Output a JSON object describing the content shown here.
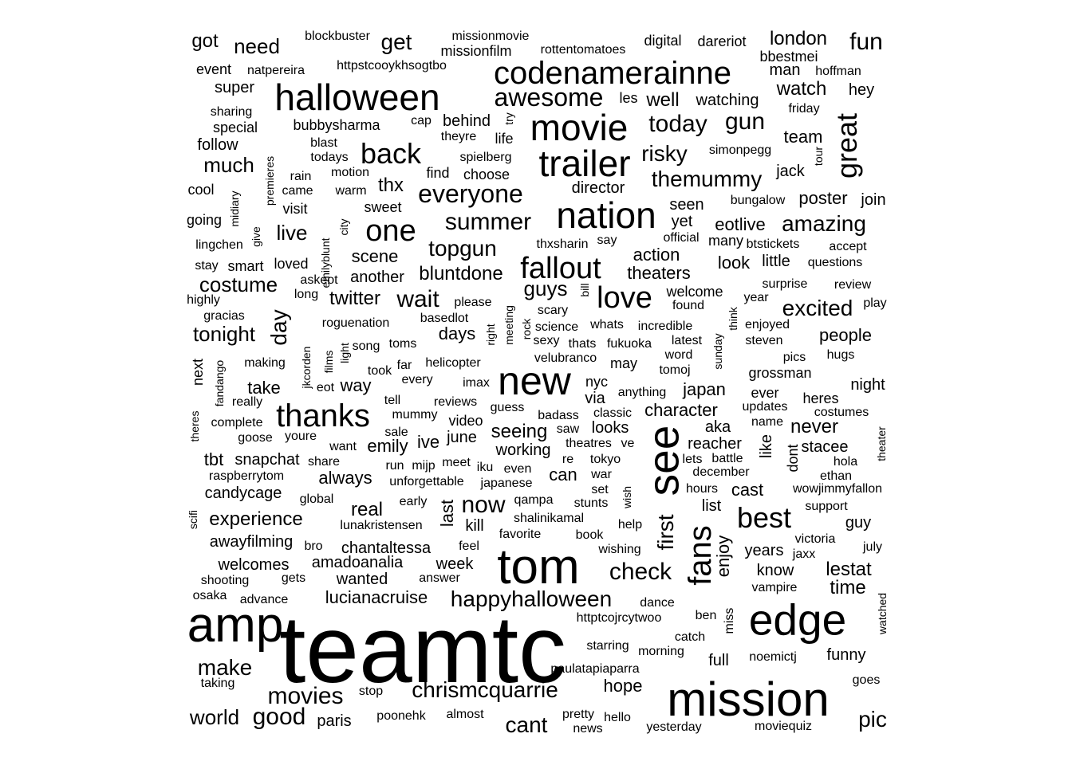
{
  "background": "#ffffff",
  "text_color": "#000000",
  "words": [
    {
      "text": "teamtc",
      "size": 120
    },
    {
      "text": "amp",
      "size": 62
    },
    {
      "text": "tom",
      "size": 62
    },
    {
      "text": "mission",
      "size": 60
    },
    {
      "text": "see",
      "size": 55
    },
    {
      "text": "edge",
      "size": 55
    },
    {
      "text": "new",
      "size": 50
    },
    {
      "text": "halloween",
      "size": 46
    },
    {
      "text": "nation",
      "size": 46
    },
    {
      "text": "trailer",
      "size": 46
    },
    {
      "text": "movie",
      "size": 46
    },
    {
      "text": "codenamerainne",
      "size": 40
    },
    {
      "text": "thanks",
      "size": 40
    },
    {
      "text": "fans",
      "size": 40
    },
    {
      "text": "fallout",
      "size": 38
    },
    {
      "text": "one",
      "size": 38
    },
    {
      "text": "back",
      "size": 36
    },
    {
      "text": "love",
      "size": 38
    },
    {
      "text": "great",
      "size": 36
    },
    {
      "text": "best",
      "size": 36
    },
    {
      "text": "everyone",
      "size": 32
    },
    {
      "text": "summer",
      "size": 30
    },
    {
      "text": "awesome",
      "size": 32
    },
    {
      "text": "today",
      "size": 30
    },
    {
      "text": "check",
      "size": 30
    },
    {
      "text": "now",
      "size": 30
    },
    {
      "text": "wait",
      "size": 30
    },
    {
      "text": "good",
      "size": 30
    },
    {
      "text": "movies",
      "size": 30
    },
    {
      "text": "chrismcquarrie",
      "size": 28
    },
    {
      "text": "happyhalloween",
      "size": 28
    },
    {
      "text": "cant",
      "size": 28
    },
    {
      "text": "make",
      "size": 28
    },
    {
      "text": "topgun",
      "size": 28
    },
    {
      "text": "gun",
      "size": 30
    },
    {
      "text": "themummy",
      "size": 28
    },
    {
      "text": "risky",
      "size": 28
    },
    {
      "text": "amazing",
      "size": 28
    },
    {
      "text": "excited",
      "size": 28
    },
    {
      "text": "first",
      "size": 28
    },
    {
      "text": "day",
      "size": 28
    },
    {
      "text": "fun",
      "size": 30
    },
    {
      "text": "get",
      "size": 28
    },
    {
      "text": "pic",
      "size": 28
    },
    {
      "text": "world",
      "size": 26
    },
    {
      "text": "much",
      "size": 26
    },
    {
      "text": "need",
      "size": 26
    },
    {
      "text": "got",
      "size": 24
    },
    {
      "text": "costume",
      "size": 26
    },
    {
      "text": "tonight",
      "size": 26
    },
    {
      "text": "live",
      "size": 26
    },
    {
      "text": "bluntdone",
      "size": 24
    },
    {
      "text": "guys",
      "size": 26
    },
    {
      "text": "thx",
      "size": 24
    },
    {
      "text": "twitter",
      "size": 24
    },
    {
      "text": "seeing",
      "size": 24
    },
    {
      "text": "never",
      "size": 24
    },
    {
      "text": "time",
      "size": 24
    },
    {
      "text": "lestat",
      "size": 24
    },
    {
      "text": "watch",
      "size": 24
    },
    {
      "text": "well",
      "size": 24
    },
    {
      "text": "london",
      "size": 24
    },
    {
      "text": "poster",
      "size": 22
    },
    {
      "text": "people",
      "size": 22
    },
    {
      "text": "experience",
      "size": 24
    },
    {
      "text": "real",
      "size": 24
    },
    {
      "text": "always",
      "size": 22
    },
    {
      "text": "lucianacruise",
      "size": 22
    },
    {
      "text": "japan",
      "size": 22
    },
    {
      "text": "character",
      "size": 22
    },
    {
      "text": "action",
      "size": 22
    },
    {
      "text": "theaters",
      "size": 22
    },
    {
      "text": "eotlive",
      "size": 22
    },
    {
      "text": "look",
      "size": 22
    },
    {
      "text": "take",
      "size": 22
    },
    {
      "text": "way",
      "size": 22
    },
    {
      "text": "emily",
      "size": 22
    },
    {
      "text": "tbt",
      "size": 22
    },
    {
      "text": "snapchat",
      "size": 20
    },
    {
      "text": "candycage",
      "size": 20
    },
    {
      "text": "scene",
      "size": 22
    },
    {
      "text": "another",
      "size": 20
    },
    {
      "text": "can",
      "size": 22
    },
    {
      "text": "cast",
      "size": 22
    },
    {
      "text": "days",
      "size": 22
    },
    {
      "text": "enjoy",
      "size": 22
    },
    {
      "text": "chantaltessa",
      "size": 20
    },
    {
      "text": "amadoanalia",
      "size": 20
    },
    {
      "text": "welcomes",
      "size": 20
    },
    {
      "text": "awayfilming",
      "size": 20
    },
    {
      "text": "wanted",
      "size": 20
    },
    {
      "text": "week",
      "size": 20
    },
    {
      "text": "working",
      "size": 20
    },
    {
      "text": "hope",
      "size": 22
    },
    {
      "text": "full",
      "size": 20
    },
    {
      "text": "funny",
      "size": 20
    },
    {
      "text": "years",
      "size": 20
    },
    {
      "text": "know",
      "size": 20
    },
    {
      "text": "guy",
      "size": 20
    },
    {
      "text": "list",
      "size": 20
    },
    {
      "text": "last",
      "size": 22
    },
    {
      "text": "kill",
      "size": 20
    },
    {
      "text": "ive",
      "size": 22
    },
    {
      "text": "june",
      "size": 20
    },
    {
      "text": "director",
      "size": 20
    },
    {
      "text": "team",
      "size": 22
    },
    {
      "text": "super",
      "size": 20
    },
    {
      "text": "follow",
      "size": 20
    },
    {
      "text": "bubbysharma",
      "size": 18
    },
    {
      "text": "behind",
      "size": 20
    },
    {
      "text": "watching",
      "size": 20
    },
    {
      "text": "hey",
      "size": 20
    },
    {
      "text": "jack",
      "size": 20
    },
    {
      "text": "join",
      "size": 20
    },
    {
      "text": "seen",
      "size": 20
    },
    {
      "text": "yet",
      "size": 20
    },
    {
      "text": "like",
      "size": 20
    },
    {
      "text": "aka",
      "size": 20
    },
    {
      "text": "reacher",
      "size": 20
    },
    {
      "text": "stacee",
      "size": 20
    },
    {
      "text": "dont",
      "size": 18
    },
    {
      "text": "night",
      "size": 20
    },
    {
      "text": "ever",
      "size": 18
    },
    {
      "text": "via",
      "size": 20
    },
    {
      "text": "looks",
      "size": 20
    },
    {
      "text": "may",
      "size": 18
    },
    {
      "text": "nyc",
      "size": 18
    },
    {
      "text": "next",
      "size": 18
    },
    {
      "text": "paris",
      "size": 20
    },
    {
      "text": "goes",
      "size": 16
    },
    {
      "text": "digital",
      "size": 18
    },
    {
      "text": "dareriot",
      "size": 18
    },
    {
      "text": "bbestmei",
      "size": 18
    },
    {
      "text": "man",
      "size": 20
    },
    {
      "text": "les",
      "size": 18
    },
    {
      "text": "blockbuster",
      "size": 16
    },
    {
      "text": "missionmovie",
      "size": 16
    },
    {
      "text": "missionfilm",
      "size": 18
    },
    {
      "text": "rottentomatoes",
      "size": 16
    },
    {
      "text": "event",
      "size": 18
    },
    {
      "text": "natpereira",
      "size": 16
    },
    {
      "text": "httpstcooykhsogtbo",
      "size": 16
    },
    {
      "text": "hoffman",
      "size": 16
    },
    {
      "text": "sharing",
      "size": 16
    },
    {
      "text": "special",
      "size": 18
    },
    {
      "text": "cap",
      "size": 16
    },
    {
      "text": "try",
      "size": 14
    },
    {
      "text": "life",
      "size": 18
    },
    {
      "text": "theyre",
      "size": 16
    },
    {
      "text": "friday",
      "size": 16
    },
    {
      "text": "blast",
      "size": 16
    },
    {
      "text": "todays",
      "size": 16
    },
    {
      "text": "spielberg",
      "size": 16
    },
    {
      "text": "simonpegg",
      "size": 16
    },
    {
      "text": "tour",
      "size": 14
    },
    {
      "text": "premieres",
      "size": 14
    },
    {
      "text": "rain",
      "size": 16
    },
    {
      "text": "motion",
      "size": 16
    },
    {
      "text": "find",
      "size": 18
    },
    {
      "text": "choose",
      "size": 18
    },
    {
      "text": "cool",
      "size": 18
    },
    {
      "text": "came",
      "size": 16
    },
    {
      "text": "warm",
      "size": 16
    },
    {
      "text": "midiary",
      "size": 14
    },
    {
      "text": "visit",
      "size": 18
    },
    {
      "text": "sweet",
      "size": 18
    },
    {
      "text": "bungalow",
      "size": 16
    },
    {
      "text": "going",
      "size": 18
    },
    {
      "text": "give",
      "size": 14
    },
    {
      "text": "city",
      "size": 14
    },
    {
      "text": "thxsharin",
      "size": 16
    },
    {
      "text": "say",
      "size": 16
    },
    {
      "text": "official",
      "size": 16
    },
    {
      "text": "many",
      "size": 18
    },
    {
      "text": "btstickets",
      "size": 16
    },
    {
      "text": "accept",
      "size": 16
    },
    {
      "text": "lingchen",
      "size": 16
    },
    {
      "text": "emilyblunt",
      "size": 14
    },
    {
      "text": "stay",
      "size": 16
    },
    {
      "text": "smart",
      "size": 18
    },
    {
      "text": "loved",
      "size": 18
    },
    {
      "text": "little",
      "size": 20
    },
    {
      "text": "questions",
      "size": 16
    },
    {
      "text": "askeot",
      "size": 16
    },
    {
      "text": "long",
      "size": 16
    },
    {
      "text": "bill",
      "size": 14
    },
    {
      "text": "welcome",
      "size": 18
    },
    {
      "text": "surprise",
      "size": 16
    },
    {
      "text": "review",
      "size": 16
    },
    {
      "text": "highly",
      "size": 16
    },
    {
      "text": "please",
      "size": 16
    },
    {
      "text": "scary",
      "size": 16
    },
    {
      "text": "found",
      "size": 16
    },
    {
      "text": "year",
      "size": 16
    },
    {
      "text": "play",
      "size": 16
    },
    {
      "text": "gracias",
      "size": 16
    },
    {
      "text": "roguenation",
      "size": 16
    },
    {
      "text": "basedlot",
      "size": 16
    },
    {
      "text": "meeting",
      "size": 14
    },
    {
      "text": "right",
      "size": 14
    },
    {
      "text": "rock",
      "size": 14
    },
    {
      "text": "science",
      "size": 16
    },
    {
      "text": "whats",
      "size": 16
    },
    {
      "text": "incredible",
      "size": 16
    },
    {
      "text": "think",
      "size": 14
    },
    {
      "text": "enjoyed",
      "size": 16
    },
    {
      "text": "song",
      "size": 16
    },
    {
      "text": "toms",
      "size": 16
    },
    {
      "text": "films",
      "size": 14
    },
    {
      "text": "light",
      "size": 14
    },
    {
      "text": "sexy",
      "size": 16
    },
    {
      "text": "thats",
      "size": 16
    },
    {
      "text": "fukuoka",
      "size": 16
    },
    {
      "text": "latest",
      "size": 16
    },
    {
      "text": "sunday",
      "size": 14
    },
    {
      "text": "steven",
      "size": 16
    },
    {
      "text": "hugs",
      "size": 16
    },
    {
      "text": "making",
      "size": 16
    },
    {
      "text": "jkcorden",
      "size": 14
    },
    {
      "text": "helicopter",
      "size": 16
    },
    {
      "text": "velubranco",
      "size": 16
    },
    {
      "text": "word",
      "size": 16
    },
    {
      "text": "pics",
      "size": 16
    },
    {
      "text": "grossman",
      "size": 18
    },
    {
      "text": "fandango",
      "size": 14
    },
    {
      "text": "far",
      "size": 16
    },
    {
      "text": "took",
      "size": 16
    },
    {
      "text": "tomoj",
      "size": 16
    },
    {
      "text": "eot",
      "size": 16
    },
    {
      "text": "every",
      "size": 16
    },
    {
      "text": "imax",
      "size": 16
    },
    {
      "text": "anything",
      "size": 16
    },
    {
      "text": "heres",
      "size": 18
    },
    {
      "text": "really",
      "size": 16
    },
    {
      "text": "tell",
      "size": 16
    },
    {
      "text": "reviews",
      "size": 16
    },
    {
      "text": "updates",
      "size": 16
    },
    {
      "text": "costumes",
      "size": 16
    },
    {
      "text": "theres",
      "size": 14
    },
    {
      "text": "complete",
      "size": 16
    },
    {
      "text": "mummy",
      "size": 16
    },
    {
      "text": "guess",
      "size": 16
    },
    {
      "text": "badass",
      "size": 16
    },
    {
      "text": "classic",
      "size": 16
    },
    {
      "text": "name",
      "size": 16
    },
    {
      "text": "theater",
      "size": 14
    },
    {
      "text": "goose",
      "size": 16
    },
    {
      "text": "youre",
      "size": 16
    },
    {
      "text": "video",
      "size": 18
    },
    {
      "text": "saw",
      "size": 16
    },
    {
      "text": "sale",
      "size": 16
    },
    {
      "text": "theatres",
      "size": 16
    },
    {
      "text": "ve",
      "size": 16
    },
    {
      "text": "want",
      "size": 16
    },
    {
      "text": "re",
      "size": 16
    },
    {
      "text": "tokyo",
      "size": 16
    },
    {
      "text": "lets",
      "size": 16
    },
    {
      "text": "battle",
      "size": 16
    },
    {
      "text": "hola",
      "size": 16
    },
    {
      "text": "share",
      "size": 16
    },
    {
      "text": "run",
      "size": 16
    },
    {
      "text": "mijp",
      "size": 16
    },
    {
      "text": "meet",
      "size": 16
    },
    {
      "text": "iku",
      "size": 16
    },
    {
      "text": "even",
      "size": 16
    },
    {
      "text": "war",
      "size": 16
    },
    {
      "text": "december",
      "size": 16
    },
    {
      "text": "ethan",
      "size": 16
    },
    {
      "text": "raspberrytom",
      "size": 16
    },
    {
      "text": "unforgettable",
      "size": 16
    },
    {
      "text": "japanese",
      "size": 16
    },
    {
      "text": "set",
      "size": 16
    },
    {
      "text": "wish",
      "size": 14
    },
    {
      "text": "hours",
      "size": 16
    },
    {
      "text": "wowjimmyfallon",
      "size": 16
    },
    {
      "text": "global",
      "size": 16
    },
    {
      "text": "early",
      "size": 16
    },
    {
      "text": "qampa",
      "size": 16
    },
    {
      "text": "stunts",
      "size": 16
    },
    {
      "text": "support",
      "size": 16
    },
    {
      "text": "scifi",
      "size": 14
    },
    {
      "text": "lunakristensen",
      "size": 16
    },
    {
      "text": "shalinikamal",
      "size": 16
    },
    {
      "text": "help",
      "size": 16
    },
    {
      "text": "favorite",
      "size": 16
    },
    {
      "text": "book",
      "size": 16
    },
    {
      "text": "victoria",
      "size": 16
    },
    {
      "text": "bro",
      "size": 16
    },
    {
      "text": "feel",
      "size": 16
    },
    {
      "text": "wishing",
      "size": 16
    },
    {
      "text": "jaxx",
      "size": 16
    },
    {
      "text": "july",
      "size": 16
    },
    {
      "text": "shooting",
      "size": 16
    },
    {
      "text": "gets",
      "size": 16
    },
    {
      "text": "answer",
      "size": 16
    },
    {
      "text": "vampire",
      "size": 16
    },
    {
      "text": "osaka",
      "size": 16
    },
    {
      "text": "advance",
      "size": 16
    },
    {
      "text": "dance",
      "size": 16
    },
    {
      "text": "watched",
      "size": 14
    },
    {
      "text": "httptcojrcytwoo",
      "size": 16
    },
    {
      "text": "ben",
      "size": 16
    },
    {
      "text": "miss",
      "size": 16
    },
    {
      "text": "starring",
      "size": 16
    },
    {
      "text": "catch",
      "size": 16
    },
    {
      "text": "morning",
      "size": 16
    },
    {
      "text": "noemictj",
      "size": 16
    },
    {
      "text": "paulatapiaparra",
      "size": 16
    },
    {
      "text": "taking",
      "size": 16
    },
    {
      "text": "stop",
      "size": 16
    },
    {
      "text": "poonehk",
      "size": 16
    },
    {
      "text": "almost",
      "size": 16
    },
    {
      "text": "pretty",
      "size": 16
    },
    {
      "text": "news",
      "size": 16
    },
    {
      "text": "hello",
      "size": 16
    },
    {
      "text": "yesterday",
      "size": 16
    },
    {
      "text": "moviequiz",
      "size": 16
    }
  ]
}
